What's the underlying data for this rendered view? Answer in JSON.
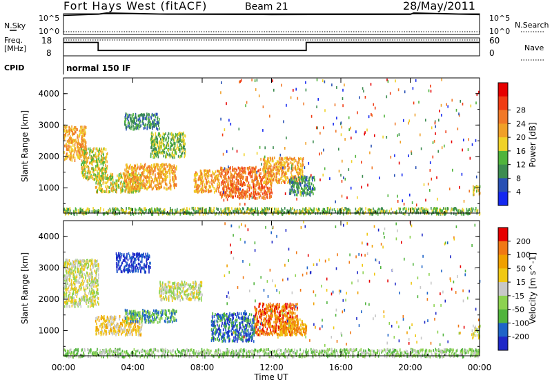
{
  "header": {
    "station": "Fort Hays West (fitACF)",
    "beam": "Beam 21",
    "date": "28/May/2011"
  },
  "strip_panels": {
    "nsky_label": "N.Sky",
    "nsearch_label": "N.Search",
    "nsky_top_tick": "10^5",
    "nsky_bottom_tick": "10^0",
    "nsearch_top_tick": "10^5",
    "nsearch_bottom_tick": "10^0",
    "freq_label_1": "Freq.",
    "freq_label_2": "[MHz]",
    "freq_top_tick": "18",
    "freq_bottom_tick": "8",
    "nave_label": "Nave",
    "nave_top_tick": "60",
    "nave_bottom_tick": "0",
    "cpid_label": "CPID",
    "cpid_value": "normal 150 IF"
  },
  "chart_data": [
    {
      "type": "line",
      "name": "N.Sky / N.Search",
      "x_hours": [
        0,
        2,
        2.5,
        6,
        12,
        20,
        20.2,
        24
      ],
      "nsky_log10": [
        4.6,
        4.9,
        5.2,
        4.9,
        4.8,
        4.85,
        5.2,
        4.8
      ],
      "nsearch_log10": [
        0.4,
        0.4,
        0.4,
        0.4,
        0.4,
        0.4,
        0.4,
        0.4
      ],
      "ylim_log10": [
        0,
        5
      ]
    },
    {
      "type": "line",
      "name": "Freq / Nave",
      "x_hours": [
        0,
        2,
        2,
        14,
        14,
        24
      ],
      "freq_mhz": [
        15.5,
        15.5,
        11,
        11,
        15.5,
        15.5
      ],
      "freq_ylim": [
        8,
        18
      ],
      "nave_ylim": [
        0,
        60
      ]
    },
    {
      "type": "heatmap",
      "title": "",
      "ylabel": "Slant Range [km]",
      "xlabel": "Time UT",
      "xlim_hours": [
        0,
        24
      ],
      "ylim_km": [
        200,
        4500
      ],
      "yticks": [
        "1000",
        "2000",
        "3000",
        "4000"
      ],
      "colorbar_label": "Power [dB]",
      "colorbar_ticks": [
        "4",
        "8",
        "12",
        "16",
        "20",
        "24",
        "28"
      ],
      "colorbar_colors": [
        "#1428f0",
        "#2850b4",
        "#3c8c50",
        "#50b43c",
        "#f0d228",
        "#f0a028",
        "#f07828",
        "#f03c14",
        "#e60000"
      ],
      "regions": [
        {
          "t0": 0.0,
          "t1": 1.3,
          "r0": 1900,
          "r1": 3000,
          "level": 5
        },
        {
          "t0": 1.0,
          "t1": 2.5,
          "r0": 1300,
          "r1": 2300,
          "level": 4
        },
        {
          "t0": 1.8,
          "t1": 4.5,
          "r0": 900,
          "r1": 1500,
          "level": 4
        },
        {
          "t0": 3.5,
          "t1": 6.5,
          "r0": 1000,
          "r1": 1800,
          "level": 5
        },
        {
          "t0": 3.5,
          "t1": 5.5,
          "r0": 2900,
          "r1": 3400,
          "level": 2
        },
        {
          "t0": 5.0,
          "t1": 7.0,
          "r0": 2000,
          "r1": 2800,
          "level": 3
        },
        {
          "t0": 7.5,
          "t1": 9.0,
          "r0": 900,
          "r1": 1600,
          "level": 5
        },
        {
          "t0": 9.0,
          "t1": 12.0,
          "r0": 700,
          "r1": 1700,
          "level": 6
        },
        {
          "t0": 11.5,
          "t1": 13.8,
          "r0": 1200,
          "r1": 2000,
          "level": 5
        },
        {
          "t0": 13.0,
          "t1": 14.5,
          "r0": 800,
          "r1": 1400,
          "level": 2
        },
        {
          "t0": 0.0,
          "t1": 24.0,
          "r0": 200,
          "r1": 400,
          "level": 3
        },
        {
          "t0": 23.6,
          "t1": 24.0,
          "r0": 800,
          "r1": 1100,
          "level": 4
        }
      ]
    },
    {
      "type": "heatmap",
      "title": "",
      "ylabel": "Slant Range [km]",
      "xlabel": "Time UT",
      "xlim_hours": [
        0,
        24
      ],
      "ylim_km": [
        200,
        4500
      ],
      "yticks": [
        "1000",
        "2000",
        "3000",
        "4000"
      ],
      "xticks": [
        "00:00",
        "04:00",
        "08:00",
        "12:00",
        "16:00",
        "20:00",
        "00:00"
      ],
      "colorbar_label": "Velocity [m s^-1]",
      "colorbar_ticks": [
        "200",
        "100",
        "50",
        "15",
        "-15",
        "-50",
        "-100",
        "-200"
      ],
      "colorbar_colors": [
        "#1e28c8",
        "#1e64c8",
        "#50b43c",
        "#8cd250",
        "#c8c8c8",
        "#f0c814",
        "#f0a000",
        "#f07814",
        "#e60000"
      ],
      "regions": [
        {
          "t0": 0.0,
          "t1": 2.0,
          "r0": 1800,
          "r1": 3300,
          "level": 4
        },
        {
          "t0": 1.8,
          "t1": 4.5,
          "r0": 900,
          "r1": 1500,
          "level": 5
        },
        {
          "t0": 3.5,
          "t1": 6.5,
          "r0": 1300,
          "r1": 1700,
          "level": 2
        },
        {
          "t0": 3.0,
          "t1": 5.0,
          "r0": 2900,
          "r1": 3500,
          "level": 0
        },
        {
          "t0": 5.5,
          "t1": 8.0,
          "r0": 2000,
          "r1": 2600,
          "level": 4
        },
        {
          "t0": 8.5,
          "t1": 11.0,
          "r0": 700,
          "r1": 1600,
          "level": 1
        },
        {
          "t0": 11.0,
          "t1": 13.5,
          "r0": 900,
          "r1": 1900,
          "level": 7
        },
        {
          "t0": 12.5,
          "t1": 14.0,
          "r0": 900,
          "r1": 1400,
          "level": 6
        },
        {
          "t0": 0.0,
          "t1": 24.0,
          "r0": 200,
          "r1": 450,
          "level": 3
        },
        {
          "t0": 23.5,
          "t1": 24.0,
          "r0": 800,
          "r1": 1200,
          "level": 4
        }
      ]
    }
  ],
  "x_axis": {
    "ticks": [
      "00:00",
      "04:00",
      "08:00",
      "12:00",
      "16:00",
      "20:00",
      "00:00"
    ],
    "label": "Time UT"
  }
}
